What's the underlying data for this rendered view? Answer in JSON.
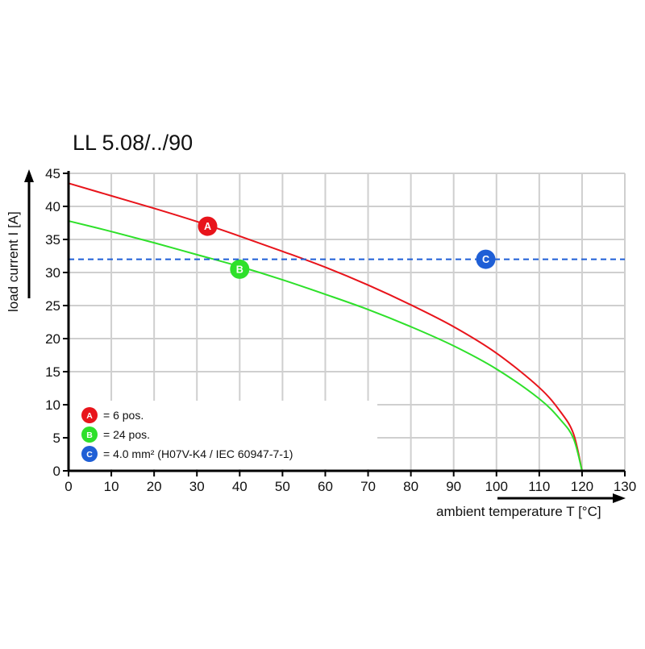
{
  "chart_data": {
    "type": "line",
    "title": "LL 5.08/../90",
    "xlabel": "ambient temperature T [°C]",
    "ylabel": "load current I [A]",
    "xlim": [
      0,
      130
    ],
    "ylim": [
      0,
      45
    ],
    "xticks": [
      0,
      10,
      20,
      30,
      40,
      50,
      60,
      70,
      80,
      90,
      100,
      110,
      120,
      130
    ],
    "yticks": [
      0,
      5,
      10,
      15,
      20,
      25,
      30,
      35,
      40,
      45
    ],
    "grid": true,
    "series": [
      {
        "marker": "A",
        "color": "#e8141b",
        "x": [
          0,
          10,
          20,
          30,
          40,
          50,
          60,
          70,
          80,
          90,
          100,
          110,
          115,
          118,
          120
        ],
        "y": [
          43.5,
          41.6,
          39.7,
          37.7,
          35.5,
          33.2,
          30.8,
          28.1,
          25.1,
          21.8,
          17.8,
          12.6,
          8.9,
          5.6,
          0
        ],
        "marker_pos": [
          32.5,
          37
        ]
      },
      {
        "marker": "B",
        "color": "#2ee02a",
        "x": [
          0,
          10,
          20,
          30,
          40,
          50,
          60,
          70,
          80,
          90,
          100,
          110,
          115,
          118,
          120
        ],
        "y": [
          37.8,
          36.2,
          34.5,
          32.7,
          30.9,
          28.9,
          26.7,
          24.4,
          21.8,
          18.9,
          15.4,
          10.9,
          7.7,
          4.9,
          0
        ],
        "marker_pos": [
          40,
          30.5
        ]
      },
      {
        "marker": "C",
        "color": "#1f5fd6",
        "style": "dashed",
        "hline": 32,
        "marker_pos": [
          97.5,
          32
        ]
      }
    ],
    "legend": {
      "placement": "bottom-left",
      "entries": [
        {
          "marker": "A",
          "color": "#e8141b",
          "text": "= 6 pos."
        },
        {
          "marker": "B",
          "color": "#2ee02a",
          "text": "= 24 pos."
        },
        {
          "marker": "C",
          "color": "#1f5fd6",
          "text": "= 4.0 mm² (H07V-K4 / IEC 60947-7-1)"
        }
      ]
    }
  }
}
